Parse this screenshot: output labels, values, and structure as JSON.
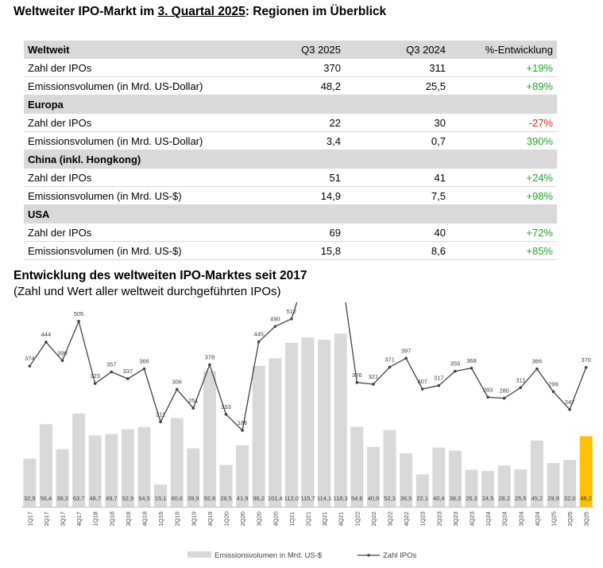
{
  "header": {
    "title_pre": "Weltweiter IPO-Markt im ",
    "title_underlined": "3. Quartal 2025",
    "title_post": ": Regionen im Überblick"
  },
  "table": {
    "columns": [
      "Weltweit",
      "Q3 2025",
      "Q3 2024",
      "%-Entwicklung"
    ],
    "sections": [
      {
        "name": "",
        "rows": [
          {
            "label": "Zahl der IPOs",
            "q3_2025": "370",
            "q3_2024": "311",
            "change": "+19%",
            "trend": "pos"
          },
          {
            "label": "Emissionsvolumen (in Mrd. US-Dollar)",
            "q3_2025": "48,2",
            "q3_2024": "25,5",
            "change": "+89%",
            "trend": "pos"
          }
        ]
      },
      {
        "name": "Europa",
        "rows": [
          {
            "label": "Zahl der IPOs",
            "q3_2025": "22",
            "q3_2024": "30",
            "change": "-27%",
            "trend": "neg"
          },
          {
            "label": "Emissionsvolumen (in Mrd. US-Dollar)",
            "q3_2025": "3,4",
            "q3_2024": "0,7",
            "change": "390%",
            "trend": "pos"
          }
        ]
      },
      {
        "name": "China (inkl. Hongkong)",
        "rows": [
          {
            "label": "Zahl der IPOs",
            "q3_2025": "51",
            "q3_2024": "41",
            "change": "+24%",
            "trend": "pos"
          },
          {
            "label": "Emissionsvolumen (in Mrd. US-$)",
            "q3_2025": "14,9",
            "q3_2024": "7,5",
            "change": "+98%",
            "trend": "pos"
          }
        ]
      },
      {
        "name": "USA",
        "rows": [
          {
            "label": "Zahl der IPOs",
            "q3_2025": "69",
            "q3_2024": "40",
            "change": "+72%",
            "trend": "pos"
          },
          {
            "label": "Emissionsvolumen (in Mrd. US-$)",
            "q3_2025": "15,8",
            "q3_2024": "8,6",
            "change": "+85%",
            "trend": "pos"
          }
        ]
      }
    ]
  },
  "chart_section": {
    "title": "Entwicklung des weltweiten IPO-Marktes seit 2017",
    "subtitle": "(Zahl und Wert aller weltweit durchgeführten IPOs)"
  },
  "chart_data": {
    "type": "bar",
    "title": "Entwicklung des weltweiten IPO-Marktes seit 2017",
    "subtitle": "(Zahl und Wert aller weltweit durchgeführten IPOs)",
    "categories": [
      "1Q17",
      "2Q17",
      "3Q17",
      "4Q17",
      "1Q18",
      "2Q18",
      "3Q18",
      "4Q18",
      "1Q19",
      "2Q19",
      "3Q19",
      "4Q19",
      "1Q20",
      "2Q20",
      "3Q20",
      "4Q20",
      "1Q21",
      "2Q21",
      "3Q21",
      "4Q21",
      "1Q22",
      "2Q22",
      "3Q22",
      "4Q22",
      "1Q23",
      "2Q23",
      "3Q23",
      "4Q23",
      "1Q24",
      "2Q24",
      "3Q24",
      "4Q24",
      "1Q25",
      "2Q25",
      "3Q25"
    ],
    "series": [
      {
        "name": "Emissionsvolumen in Mrd. US-$",
        "kind": "bar",
        "values": [
          32.9,
          56.4,
          39.3,
          63.7,
          48.7,
          49.7,
          52.9,
          54.5,
          15.1,
          60.6,
          39.9,
          92.8,
          28.5,
          41.9,
          96.2,
          101.4,
          112.0,
          115.7,
          114.1,
          118.3,
          54.6,
          40.9,
          52.3,
          36.5,
          22.1,
          40.4,
          38.3,
          25.3,
          24.5,
          28.2,
          25.5,
          45.2,
          29.9,
          32.0,
          48.2
        ],
        "labels": [
          "32,9",
          "56,4",
          "39,3",
          "63,7",
          "48,7",
          "49,7",
          "52,9",
          "54,5",
          "15,1",
          "60,6",
          "39,9",
          "92,8",
          "28,5",
          "41,9",
          "96,2",
          "101,4",
          "112,0",
          "115,7",
          "114,1",
          "118,3",
          "54,6",
          "40,9",
          "52,3",
          "36,5",
          "22,1",
          "40,4",
          "38,3",
          "25,3",
          "24,5",
          "28,2",
          "25,5",
          "45,2",
          "29,9",
          "32,0",
          "48,2"
        ],
        "color": "#d9d9d9",
        "highlight_color": "#ffc000",
        "highlight_last": true
      },
      {
        "name": "Zahl IPOs",
        "kind": "line",
        "values": [
          374,
          444,
          390,
          505,
          323,
          357,
          337,
          366,
          211,
          306,
          251,
          378,
          233,
          186,
          445,
          490,
          512,
          659,
          602,
          663,
          326,
          321,
          371,
          397,
          307,
          317,
          359,
          368,
          283,
          280,
          311,
          366,
          299,
          247,
          370
        ],
        "color": "#404040"
      }
    ],
    "ylim_bar": [
      0,
      125
    ],
    "ylim_line": [
      0,
      1000
    ],
    "legend": [
      "Emissionsvolumen in Mrd. US-$",
      "Zahl IPOs"
    ],
    "legend_position": "bottom"
  }
}
